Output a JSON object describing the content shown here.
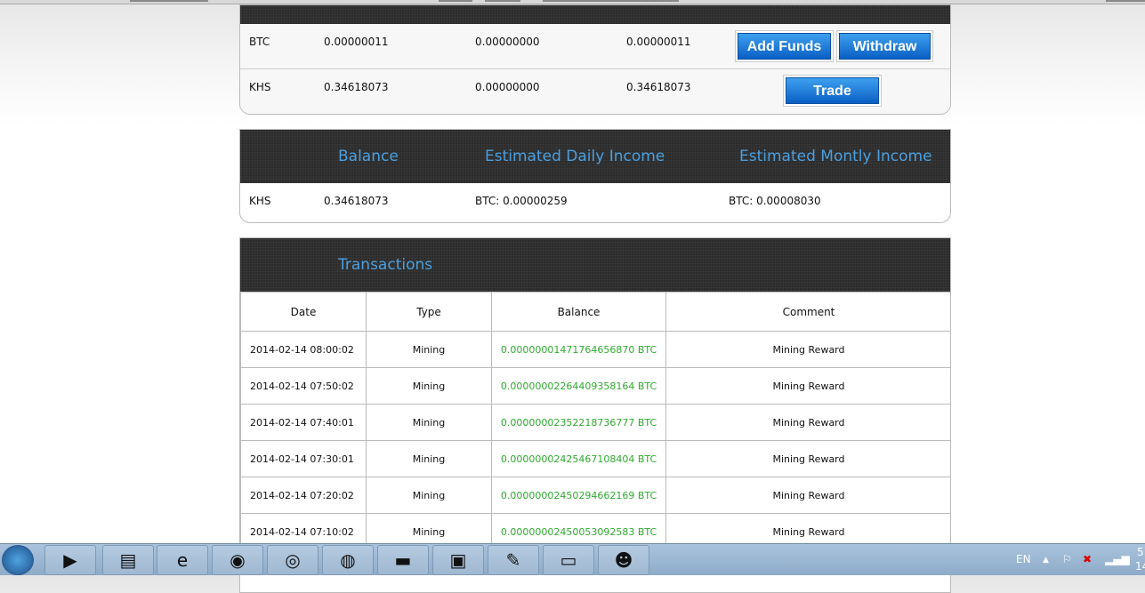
{
  "wallet": {
    "rows": [
      {
        "currency": "BTC",
        "balance": "0.00000011",
        "held": "0.00000000",
        "available": "0.00000011",
        "buttons": [
          "Add Funds",
          "Withdraw"
        ]
      },
      {
        "currency": "KHS",
        "balance": "0.34618073",
        "held": "0.00000000",
        "available": "0.34618073",
        "buttons": [
          "Trade"
        ]
      }
    ]
  },
  "income": {
    "headers": [
      "Balance",
      "Estimated Daily Income",
      "Estimated Montly Income"
    ],
    "row": {
      "currency": "KHS",
      "balance": "0.34618073",
      "daily": "BTC: 0.00000259",
      "monthly": "BTC: 0.00008030"
    }
  },
  "transactions": {
    "title": "Transactions",
    "headers": [
      "Date",
      "Type",
      "Balance",
      "Comment"
    ],
    "rows": [
      [
        "2014-02-14 08:00:02",
        "Mining",
        "0.00000001471764656870 BTC",
        "Mining Reward"
      ],
      [
        "2014-02-14 07:50:02",
        "Mining",
        "0.00000002264409358164 BTC",
        "Mining Reward"
      ],
      [
        "2014-02-14 07:40:01",
        "Mining",
        "0.00000002352218736777 BTC",
        "Mining Reward"
      ],
      [
        "2014-02-14 07:30:01",
        "Mining",
        "0.00000002425467108404 BTC",
        "Mining Reward"
      ],
      [
        "2014-02-14 07:20:02",
        "Mining",
        "0.00000002450294662169 BTC",
        "Mining Reward"
      ],
      [
        "2014-02-14 07:10:02",
        "Mining",
        "0.00000002450053092583 BTC",
        "Mining Reward"
      ]
    ]
  },
  "taskbar": {
    "apps": [
      "media-player-icon",
      "file-explorer-icon",
      "internet-explorer-icon",
      "firefox-icon",
      "chrome-icon",
      "network-globe-icon",
      "command-prompt-icon",
      "window-app-icon",
      "notepad-icon",
      "remote-desktop-icon",
      "messenger-icon"
    ],
    "language": "EN",
    "clock_time": "5",
    "clock_date": "14"
  }
}
